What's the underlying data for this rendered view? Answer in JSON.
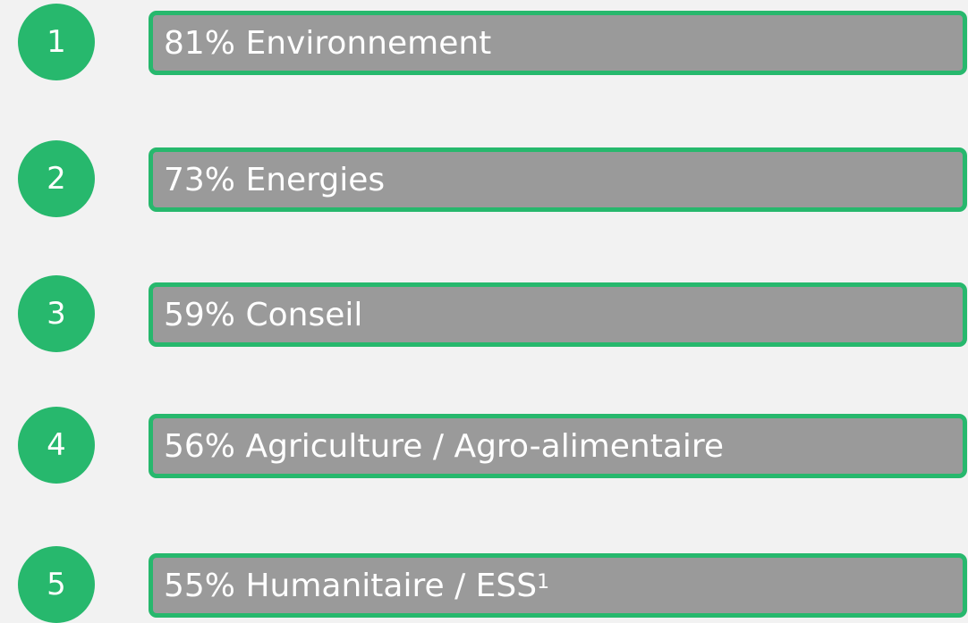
{
  "items": [
    {
      "rank": "1",
      "text": "81% Environnement"
    },
    {
      "rank": "2",
      "text": "73% Energies"
    },
    {
      "rank": "3",
      "text": "59% Conseil"
    },
    {
      "rank": "4",
      "text": "56% Agriculture / Agro-alimentaire"
    },
    {
      "rank": "5",
      "text": "55% Humanitaire / ESS",
      "note": "1"
    }
  ]
}
